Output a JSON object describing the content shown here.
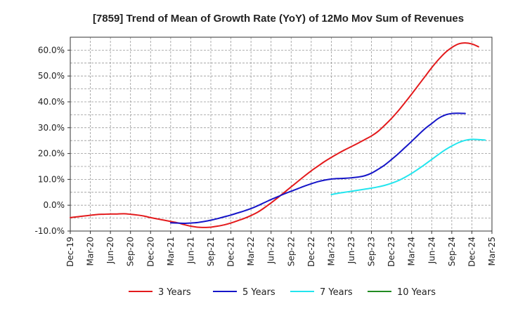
{
  "chart_data": {
    "type": "line",
    "title": "[7859]  Trend of Mean of Growth Rate (YoY) of 12Mo Mov Sum of Revenues",
    "xlabel": "",
    "ylabel": "",
    "ylim": [
      -10,
      65
    ],
    "yticks": [
      -10,
      0,
      10,
      20,
      30,
      40,
      50,
      60
    ],
    "ytick_labels": [
      "-10.0%",
      "0.0%",
      "10.0%",
      "20.0%",
      "30.0%",
      "40.0%",
      "50.0%",
      "60.0%"
    ],
    "x_tick_labels": [
      "Dec-19",
      "Mar-20",
      "Jun-20",
      "Sep-20",
      "Dec-20",
      "Mar-21",
      "Jun-21",
      "Sep-21",
      "Dec-21",
      "Mar-22",
      "Jun-22",
      "Sep-22",
      "Dec-22",
      "Mar-23",
      "Jun-23",
      "Sep-23",
      "Dec-23",
      "Mar-24",
      "Jun-24",
      "Sep-24",
      "Dec-24",
      "Mar-25"
    ],
    "x_start": "Dec-19",
    "grid": true,
    "legend_position": "bottom",
    "series": [
      {
        "name": "3 Years",
        "color": "#e31a1c",
        "start_month_index": 0,
        "values": [
          -4.8,
          -4.5,
          -4.2,
          -3.9,
          -3.6,
          -3.5,
          -3.4,
          -3.4,
          -3.3,
          -3.5,
          -3.8,
          -4.2,
          -4.8,
          -5.3,
          -5.8,
          -6.3,
          -6.8,
          -7.5,
          -8.1,
          -8.5,
          -8.6,
          -8.5,
          -8.1,
          -7.6,
          -6.9,
          -6.0,
          -5.1,
          -4.0,
          -2.7,
          -1.0,
          0.9,
          2.9,
          5.0,
          7.1,
          9.2,
          11.3,
          13.3,
          15.1,
          16.9,
          18.5,
          20.0,
          21.4,
          22.7,
          24.0,
          25.4,
          26.8,
          28.6,
          31.0,
          33.6,
          36.5,
          39.7,
          43.0,
          46.4,
          49.8,
          53.2,
          56.3,
          59.0,
          61.0,
          62.4,
          62.8,
          62.4,
          61.3
        ]
      },
      {
        "name": "5 Years",
        "color": "#1515c8",
        "start_month_index": 15,
        "values": [
          -6.8,
          -6.9,
          -7.0,
          -6.9,
          -6.7,
          -6.3,
          -5.8,
          -5.2,
          -4.5,
          -3.8,
          -3.0,
          -2.2,
          -1.3,
          -0.2,
          1.0,
          2.2,
          3.3,
          4.4,
          5.4,
          6.4,
          7.4,
          8.3,
          9.1,
          9.7,
          10.1,
          10.3,
          10.4,
          10.6,
          10.9,
          11.4,
          12.4,
          13.9,
          15.6,
          17.7,
          19.9,
          22.3,
          24.7,
          27.2,
          29.6,
          31.6,
          33.6,
          34.9,
          35.5,
          35.6,
          35.5
        ]
      },
      {
        "name": "7 Years",
        "color": "#22e5ee",
        "start_month_index": 39,
        "values": [
          4.1,
          4.6,
          5.0,
          5.4,
          5.8,
          6.2,
          6.6,
          7.1,
          7.7,
          8.5,
          9.5,
          10.8,
          12.3,
          14.0,
          15.8,
          17.7,
          19.6,
          21.4,
          22.9,
          24.2,
          25.1,
          25.5,
          25.4,
          25.2
        ]
      },
      {
        "name": "10 Years",
        "color": "#228b22",
        "start_month_index": 0,
        "values": []
      }
    ]
  }
}
